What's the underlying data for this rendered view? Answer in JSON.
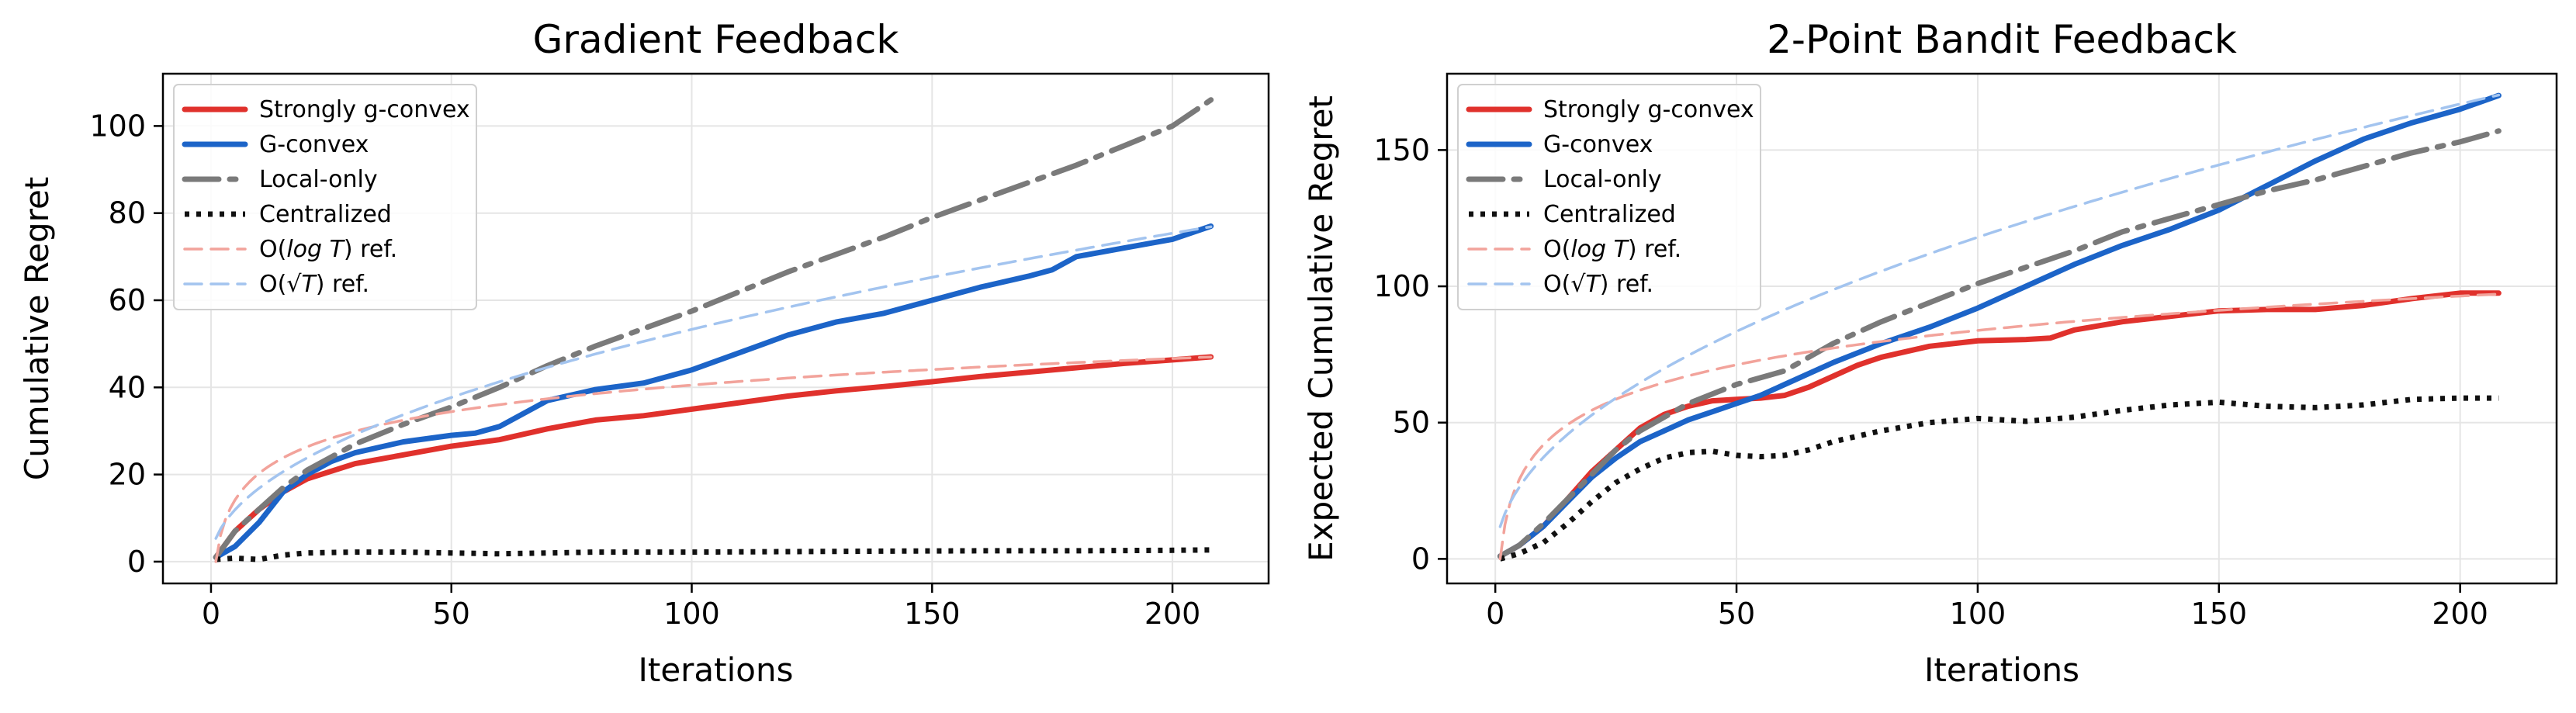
{
  "chart_data": [
    {
      "type": "line",
      "title": "Gradient Feedback",
      "xlabel": "Iterations",
      "ylabel": "Cumulative Regret",
      "xlim": [
        -10,
        220
      ],
      "ylim": [
        -5,
        112
      ],
      "xticks": [
        0,
        50,
        100,
        150,
        200
      ],
      "yticks": [
        0,
        20,
        40,
        60,
        80,
        100
      ],
      "grid": true,
      "legend_position": "top-left",
      "series": [
        {
          "name": "Strongly g-convex",
          "color": "#e0312c",
          "style": "solid",
          "x": [
            1,
            5,
            10,
            15,
            20,
            30,
            40,
            50,
            60,
            70,
            80,
            90,
            100,
            110,
            120,
            130,
            140,
            150,
            160,
            170,
            180,
            190,
            200,
            208
          ],
          "y": [
            1,
            7,
            12,
            16,
            19,
            22.5,
            24.5,
            26.5,
            28,
            30.5,
            32.5,
            33.5,
            35,
            36.5,
            38,
            39.2,
            40.2,
            41.3,
            42.5,
            43.5,
            44.5,
            45.5,
            46.3,
            47
          ]
        },
        {
          "name": "G-convex",
          "color": "#1c64c8",
          "style": "solid",
          "x": [
            1,
            5,
            10,
            15,
            20,
            25,
            30,
            40,
            50,
            55,
            60,
            70,
            80,
            90,
            100,
            110,
            115,
            120,
            130,
            140,
            150,
            160,
            170,
            175,
            180,
            190,
            200,
            208
          ],
          "y": [
            1,
            3.5,
            9,
            16,
            20,
            23,
            25,
            27.5,
            29,
            29.5,
            31,
            37,
            39.5,
            41,
            44,
            48,
            50,
            52,
            55,
            57,
            60,
            63,
            65.5,
            67,
            70,
            72,
            74,
            77
          ]
        },
        {
          "name": "Local-only",
          "color": "#7a7a7a",
          "style": "dashdot",
          "x": [
            1,
            5,
            10,
            15,
            20,
            25,
            30,
            40,
            50,
            60,
            70,
            80,
            90,
            100,
            110,
            120,
            130,
            140,
            150,
            160,
            170,
            180,
            190,
            200,
            208
          ],
          "y": [
            1,
            7,
            12,
            17,
            21,
            24,
            27,
            31.5,
            35.5,
            40,
            45,
            49.5,
            53.5,
            57.5,
            62,
            66.5,
            70.5,
            74.5,
            79,
            83,
            87,
            91,
            95.5,
            100,
            106
          ]
        },
        {
          "name": "Centralized",
          "color": "#111111",
          "style": "dotted",
          "x": [
            1,
            5,
            10,
            15,
            20,
            30,
            40,
            50,
            60,
            80,
            100,
            120,
            140,
            160,
            180,
            200,
            208
          ],
          "y": [
            0.5,
            0.8,
            0.5,
            1.5,
            2,
            2.2,
            2.2,
            2,
            1.8,
            2.2,
            2.2,
            2.3,
            2.4,
            2.5,
            2.5,
            2.6,
            2.7
          ]
        },
        {
          "name": "O(log T) ref.",
          "name_math": "log T",
          "color": "#f2a39b",
          "style": "dashed",
          "fn": "log",
          "coef": 8.8
        },
        {
          "name": "O(√T) ref.",
          "name_math": "√T",
          "color": "#a3c4ef",
          "style": "dashed",
          "fn": "sqrt",
          "coef": 5.33
        }
      ]
    },
    {
      "type": "line",
      "title": "2-Point Bandit Feedback",
      "xlabel": "Iterations",
      "ylabel": "Expected Cumulative Regret",
      "xlim": [
        -10,
        220
      ],
      "ylim": [
        -9,
        178
      ],
      "xticks": [
        0,
        50,
        100,
        150,
        200
      ],
      "yticks": [
        0,
        50,
        100,
        150
      ],
      "grid": true,
      "legend_position": "top-left",
      "series": [
        {
          "name": "Strongly g-convex",
          "color": "#e0312c",
          "style": "solid",
          "x": [
            1,
            5,
            10,
            15,
            20,
            25,
            30,
            35,
            40,
            45,
            50,
            55,
            60,
            65,
            70,
            75,
            80,
            90,
            100,
            110,
            115,
            120,
            130,
            140,
            150,
            160,
            170,
            180,
            190,
            200,
            208
          ],
          "y": [
            1,
            5,
            12,
            22,
            32,
            40,
            48,
            53,
            56,
            58,
            58.5,
            59,
            60,
            63,
            67,
            71,
            74,
            78,
            80,
            80.5,
            81,
            84,
            87,
            89,
            91,
            91.5,
            91.5,
            93,
            95.5,
            97.5,
            97.5
          ]
        },
        {
          "name": "G-convex",
          "color": "#1c64c8",
          "style": "solid",
          "x": [
            1,
            5,
            10,
            15,
            20,
            25,
            30,
            35,
            40,
            45,
            50,
            55,
            60,
            70,
            80,
            90,
            100,
            110,
            120,
            130,
            140,
            150,
            160,
            170,
            180,
            190,
            200,
            208
          ],
          "y": [
            1,
            5,
            12,
            21,
            30,
            37,
            43,
            47,
            51,
            54,
            57,
            60,
            64,
            72,
            79,
            85,
            92,
            100,
            108,
            115,
            121,
            128,
            137,
            146,
            154,
            160,
            165,
            170
          ]
        },
        {
          "name": "Local-only",
          "color": "#7a7a7a",
          "style": "dashdot",
          "x": [
            1,
            5,
            10,
            15,
            20,
            25,
            30,
            35,
            40,
            50,
            60,
            70,
            80,
            90,
            100,
            110,
            120,
            130,
            140,
            150,
            160,
            170,
            180,
            190,
            200,
            208
          ],
          "y": [
            1,
            5,
            13,
            22,
            31,
            40,
            47,
            52,
            57,
            64,
            69,
            79,
            87,
            94,
            101,
            107,
            113,
            120,
            125,
            130,
            135,
            139,
            144,
            149,
            153,
            157
          ]
        },
        {
          "name": "Centralized",
          "color": "#111111",
          "style": "dotted",
          "x": [
            1,
            5,
            10,
            15,
            20,
            25,
            30,
            35,
            40,
            45,
            50,
            55,
            60,
            65,
            70,
            80,
            90,
            100,
            110,
            120,
            130,
            140,
            150,
            160,
            170,
            180,
            190,
            200,
            208
          ],
          "y": [
            0,
            2,
            6,
            13,
            21,
            28,
            33,
            37,
            39,
            39.5,
            38,
            37.5,
            38,
            40,
            43,
            47,
            50,
            51.5,
            50.5,
            52,
            54.5,
            56.5,
            57.5,
            56,
            55.5,
            56.5,
            58.5,
            59,
            59
          ]
        },
        {
          "name": "O(log T) ref.",
          "name_math": "log T",
          "color": "#f2a39b",
          "style": "dashed",
          "fn": "log",
          "coef": 18.2
        },
        {
          "name": "O(√T) ref.",
          "name_math": "√T",
          "color": "#a3c4ef",
          "style": "dashed",
          "fn": "sqrt",
          "coef": 11.8
        }
      ]
    }
  ]
}
